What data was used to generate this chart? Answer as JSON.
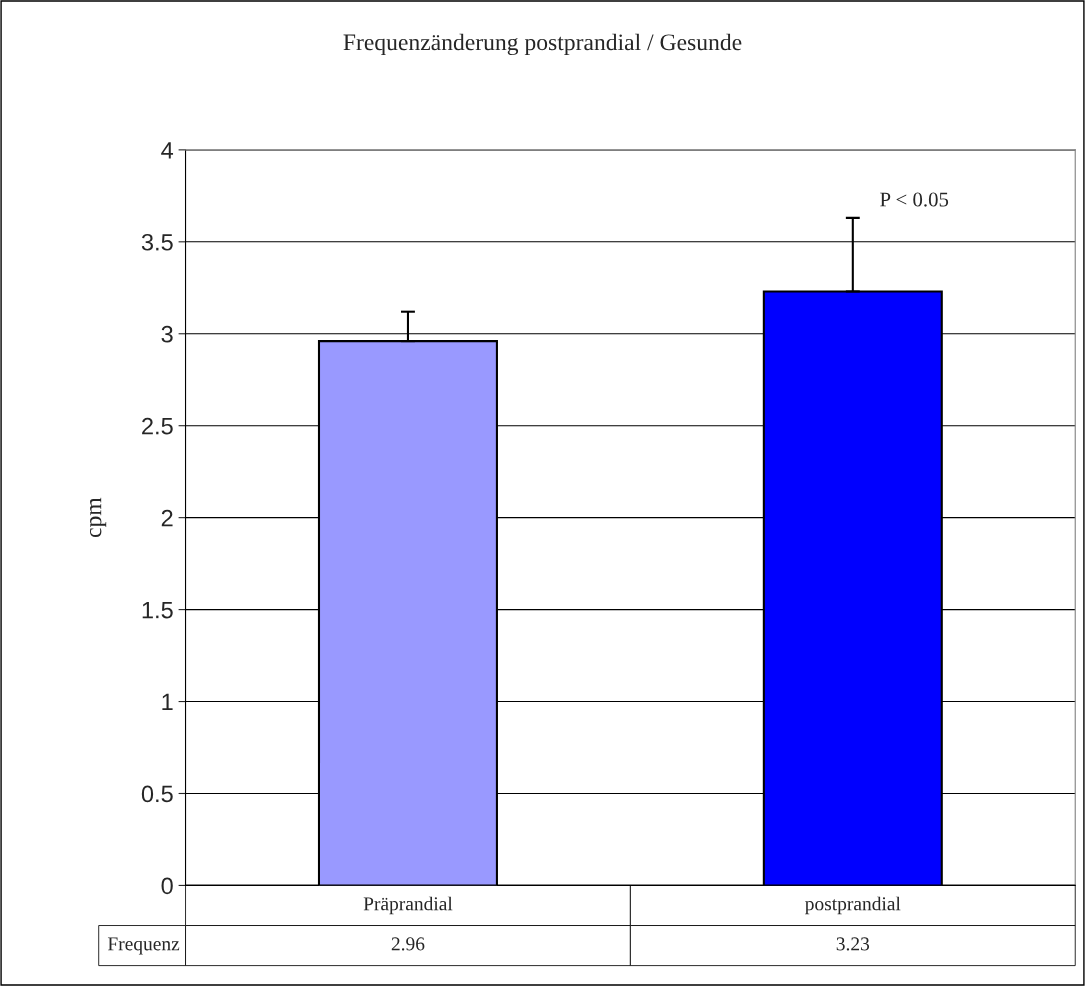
{
  "chart_data": {
    "type": "bar",
    "title": "Frequenzänderung postprandial / Gesunde",
    "ylabel": "cpm",
    "categories": [
      "Präprandial",
      "postprandial"
    ],
    "series": [
      {
        "name": "Frequenz",
        "colors": [
          "#9999ff",
          "#0000ff"
        ],
        "values": [
          2.96,
          3.23
        ],
        "errors": [
          [
            2.96,
            3.12
          ],
          [
            3.23,
            3.63
          ]
        ]
      }
    ],
    "ylim": [
      0,
      4
    ],
    "yticks": [
      0,
      0.5,
      1,
      1.5,
      2,
      2.5,
      3,
      3.5,
      4
    ],
    "grid": "y",
    "data_labels": true,
    "annotations": [
      "P < 0.05"
    ]
  }
}
